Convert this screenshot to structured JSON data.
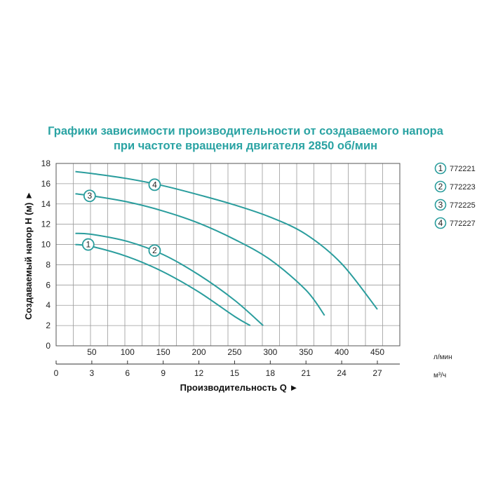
{
  "title_line1": "Графики зависимости производительности от создаваемого напора",
  "title_line2": "при частоте вращения двигателя 2850 об/мин",
  "chart_data": {
    "type": "line",
    "title": "Графики зависимости производительности от создаваемого напора при частоте вращения двигателя 2850 об/мин",
    "ylabel": "Создаваемый напор H (м) ►",
    "xlabel": "Производительность Q ►",
    "x_unit_lmin": "л/мин",
    "x_unit_m3h": "м³/ч",
    "ylim": [
      0,
      18
    ],
    "xlim_lmin": [
      0,
      450
    ],
    "yticks": [
      "0",
      "2",
      "4",
      "6",
      "8",
      "10",
      "12",
      "14",
      "16",
      "18"
    ],
    "xticks_lmin": [
      "50",
      "100",
      "150",
      "200",
      "250",
      "300",
      "350",
      "400",
      "450"
    ],
    "xticks_m3h": [
      "0",
      "3",
      "6",
      "9",
      "12",
      "15",
      "18",
      "21",
      "24",
      "27"
    ],
    "grid": true,
    "line_color": "#2a9d9d",
    "series": [
      {
        "name": "772221",
        "marker": "1",
        "marker_at": [
          45,
          10.0
        ],
        "x": [
          27,
          50,
          100,
          150,
          200,
          250,
          272
        ],
        "y": [
          10.0,
          9.8,
          8.8,
          7.3,
          5.3,
          2.9,
          2.0
        ]
      },
      {
        "name": "772223",
        "marker": "2",
        "marker_at": [
          138,
          9.4
        ],
        "x": [
          27,
          50,
          100,
          150,
          200,
          250,
          290
        ],
        "y": [
          11.1,
          11.0,
          10.3,
          9.0,
          7.0,
          4.5,
          2.0
        ]
      },
      {
        "name": "772225",
        "marker": "3",
        "marker_at": [
          47,
          14.8
        ],
        "x": [
          27,
          50,
          100,
          150,
          200,
          250,
          300,
          350,
          376
        ],
        "y": [
          15.0,
          14.8,
          14.2,
          13.3,
          12.1,
          10.5,
          8.5,
          5.5,
          3.0
        ]
      },
      {
        "name": "772227",
        "marker": "4",
        "marker_at": [
          138,
          15.9
        ],
        "x": [
          27,
          50,
          100,
          150,
          200,
          250,
          300,
          350,
          400,
          450
        ],
        "y": [
          17.2,
          17.0,
          16.5,
          15.8,
          14.9,
          13.9,
          12.7,
          11.0,
          8.1,
          3.6
        ]
      }
    ],
    "legend": {
      "placement": "right",
      "entries": [
        {
          "marker": "1",
          "label": "772221"
        },
        {
          "marker": "2",
          "label": "772223"
        },
        {
          "marker": "3",
          "label": "772225"
        },
        {
          "marker": "4",
          "label": "772227"
        }
      ]
    }
  }
}
